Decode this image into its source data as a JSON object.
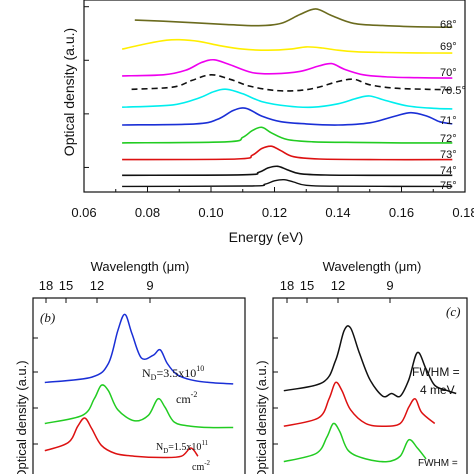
{
  "chart_data": [
    {
      "panel": "a",
      "type": "line",
      "xlabel": "Energy (eV)",
      "ylabel": "Optical density (a.u.)",
      "xlim": [
        0.06,
        0.18
      ],
      "x_ticks": [
        "0.06",
        "0.08",
        "0.10",
        "0.12",
        "0.14",
        "0.16",
        "0.18"
      ],
      "grid": false,
      "series": [
        {
          "name": "68°",
          "color": "#6b6b1e",
          "dashed": false,
          "x": [
            0.076,
            0.085,
            0.095,
            0.105,
            0.115,
            0.122,
            0.128,
            0.133,
            0.138,
            0.145,
            0.155,
            0.165,
            0.176
          ],
          "y": [
            9.5,
            9.45,
            9.38,
            9.3,
            9.25,
            9.35,
            9.75,
            10.0,
            9.7,
            9.35,
            9.25,
            9.2,
            9.18
          ]
        },
        {
          "name": "69°",
          "color": "#ffee00",
          "dashed": false,
          "x": [
            0.072,
            0.08,
            0.086,
            0.09,
            0.096,
            0.103,
            0.11,
            0.118,
            0.125,
            0.13,
            0.135,
            0.14,
            0.146,
            0.155,
            0.165,
            0.176
          ],
          "y": [
            8.2,
            8.45,
            8.6,
            8.62,
            8.55,
            8.35,
            8.2,
            8.15,
            8.2,
            8.3,
            8.25,
            8.15,
            8.08,
            8.05,
            8.03,
            8.02
          ]
        },
        {
          "name": "70°",
          "color": "#ee00ee",
          "dashed": false,
          "x": [
            0.072,
            0.085,
            0.092,
            0.097,
            0.101,
            0.106,
            0.113,
            0.12,
            0.128,
            0.134,
            0.138,
            0.142,
            0.148,
            0.156,
            0.165,
            0.176
          ],
          "y": [
            7.0,
            7.05,
            7.25,
            7.6,
            7.72,
            7.5,
            7.15,
            7.1,
            7.2,
            7.45,
            7.55,
            7.3,
            7.05,
            6.95,
            6.92,
            6.9
          ]
        },
        {
          "name": "70.5°",
          "color": "#111111",
          "dashed": true,
          "x": [
            0.075,
            0.088,
            0.094,
            0.1,
            0.106,
            0.112,
            0.12,
            0.128,
            0.134,
            0.14,
            0.145,
            0.15,
            0.158,
            0.168,
            0.176
          ],
          "y": [
            6.4,
            6.5,
            6.8,
            7.05,
            6.85,
            6.55,
            6.35,
            6.35,
            6.5,
            6.75,
            6.85,
            6.6,
            6.45,
            6.4,
            6.38
          ]
        },
        {
          "name": "70.5°",
          "color": "#00eeee",
          "dashed": false,
          "x": [
            0.072,
            0.088,
            0.096,
            0.101,
            0.105,
            0.11,
            0.116,
            0.124,
            0.132,
            0.14,
            0.146,
            0.15,
            0.155,
            0.162,
            0.17,
            0.176
          ],
          "y": [
            5.6,
            5.7,
            6.0,
            6.3,
            6.4,
            6.2,
            5.85,
            5.65,
            5.6,
            5.75,
            6.0,
            6.1,
            5.9,
            5.65,
            5.55,
            5.52
          ]
        },
        {
          "name": "71°",
          "color": "#1a2fd6",
          "dashed": false,
          "x": [
            0.072,
            0.095,
            0.102,
            0.107,
            0.111,
            0.116,
            0.122,
            0.13,
            0.14,
            0.15,
            0.158,
            0.163,
            0.168,
            0.172,
            0.176
          ],
          "y": [
            4.8,
            4.85,
            5.05,
            5.45,
            5.55,
            5.2,
            4.95,
            4.85,
            4.8,
            4.9,
            5.2,
            5.35,
            5.2,
            4.95,
            4.85
          ]
        },
        {
          "name": "72°",
          "color": "#22cc22",
          "dashed": false,
          "x": [
            0.072,
            0.105,
            0.11,
            0.113,
            0.116,
            0.119,
            0.124,
            0.132,
            0.145,
            0.16,
            0.176
          ],
          "y": [
            4.0,
            4.05,
            4.25,
            4.55,
            4.7,
            4.45,
            4.15,
            4.05,
            4.02,
            4.0,
            4.0
          ]
        },
        {
          "name": "73°",
          "color": "#dd1111",
          "dashed": false,
          "x": [
            0.072,
            0.108,
            0.113,
            0.116,
            0.119,
            0.122,
            0.126,
            0.134,
            0.15,
            0.176
          ],
          "y": [
            3.25,
            3.28,
            3.45,
            3.75,
            3.85,
            3.65,
            3.38,
            3.28,
            3.25,
            3.25
          ]
        },
        {
          "name": "74°",
          "color": "#111111",
          "dashed": false,
          "x": [
            0.072,
            0.11,
            0.115,
            0.118,
            0.121,
            0.124,
            0.128,
            0.136,
            0.15,
            0.176
          ],
          "y": [
            2.55,
            2.57,
            2.68,
            2.88,
            2.95,
            2.8,
            2.62,
            2.56,
            2.55,
            2.55
          ]
        }
      ],
      "angle_labels": [
        "68°",
        "69°",
        "70°",
        "70.5°",
        "71°",
        "72°",
        "73°",
        "74°",
        "75°"
      ]
    },
    {
      "panel": "b",
      "type": "line",
      "panel_label": "(b)",
      "top_axis_label": "Wavelength (μm)",
      "top_ticks": [
        "18",
        "15",
        "12",
        "9"
      ],
      "annotations": [
        {
          "text": "N",
          "sub": "D",
          "rest": "=3.5x10",
          "sup": "10"
        },
        {
          "text": "cm",
          "sup": "-2"
        },
        {
          "text": "N",
          "sub": "D",
          "rest": "=1.5x10",
          "sup": "11"
        },
        {
          "text": "cm",
          "sup": "-2"
        }
      ],
      "series": [
        {
          "color": "#1a2fd6",
          "x": [
            0.07,
            0.09,
            0.097,
            0.101,
            0.104,
            0.107,
            0.111,
            0.116,
            0.119,
            0.122,
            0.126,
            0.132,
            0.14,
            0.15
          ],
          "y": [
            4.5,
            4.7,
            5.2,
            6.4,
            7.0,
            6.3,
            5.4,
            5.5,
            5.7,
            5.2,
            4.8,
            4.6,
            4.5,
            4.45
          ]
        },
        {
          "color": "#22cc22",
          "x": [
            0.07,
            0.086,
            0.091,
            0.094,
            0.097,
            0.101,
            0.108,
            0.114,
            0.118,
            0.121,
            0.125,
            0.132,
            0.14,
            0.15
          ],
          "y": [
            3.0,
            3.3,
            3.9,
            4.4,
            4.2,
            3.5,
            3.1,
            3.3,
            3.9,
            3.6,
            3.05,
            2.9,
            2.85,
            2.85
          ]
        },
        {
          "color": "#dd1111",
          "x": [
            0.07,
            0.08,
            0.084,
            0.087,
            0.09,
            0.094,
            0.1,
            0.108,
            0.12,
            0.128,
            0.132,
            0.135
          ],
          "y": [
            2.0,
            2.3,
            2.9,
            3.2,
            2.8,
            2.2,
            1.9,
            1.8,
            1.75,
            1.8,
            2.1,
            1.8
          ]
        }
      ]
    },
    {
      "panel": "c",
      "type": "line",
      "panel_label": "(c)",
      "top_axis_label": "Wavelength (μm)",
      "top_ticks": [
        "18",
        "15",
        "12",
        "9"
      ],
      "annotations": [
        {
          "text": "FWHM ="
        },
        {
          "text": "4 meV"
        },
        {
          "text": "FWHM ="
        }
      ],
      "series": [
        {
          "color": "#111111",
          "x": [
            0.07,
            0.088,
            0.094,
            0.098,
            0.101,
            0.105,
            0.11,
            0.116,
            0.12,
            0.124,
            0.128,
            0.132,
            0.136,
            0.14,
            0.146,
            0.15
          ],
          "y": [
            4.2,
            4.5,
            5.3,
            6.4,
            6.5,
            5.6,
            4.6,
            4.0,
            4.1,
            4.0,
            4.6,
            5.6,
            5.0,
            4.4,
            4.2,
            4.1
          ]
        },
        {
          "color": "#dd1111",
          "x": [
            0.07,
            0.086,
            0.091,
            0.094,
            0.097,
            0.101,
            0.108,
            0.116,
            0.124,
            0.128,
            0.131,
            0.134,
            0.14
          ],
          "y": [
            2.9,
            3.2,
            3.9,
            4.5,
            4.2,
            3.5,
            3.0,
            2.9,
            3.0,
            3.6,
            3.9,
            3.4,
            3.0
          ]
        },
        {
          "color": "#22cc22",
          "x": [
            0.07,
            0.085,
            0.09,
            0.093,
            0.096,
            0.1,
            0.108,
            0.118,
            0.124,
            0.128,
            0.132,
            0.136
          ],
          "y": [
            1.6,
            1.9,
            2.5,
            3.0,
            2.7,
            2.0,
            1.7,
            1.6,
            1.8,
            2.4,
            2.1,
            1.7
          ]
        }
      ]
    }
  ]
}
